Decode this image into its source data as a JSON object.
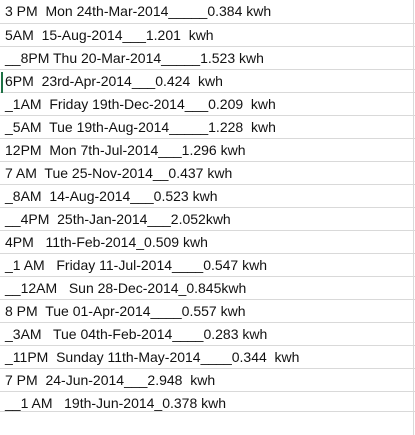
{
  "sheet": {
    "rows": [
      {
        "text": "3 PM  Mon 24th-Mar-2014_____0.384 kwh"
      },
      {
        "text": "5AM  15-Aug-2014___1.201  kwh"
      },
      {
        "text": "__8PM Thu 20-Mar-2014_____1.523 kwh"
      },
      {
        "text": "6PM  23rd-Apr-2014___0.424  kwh"
      },
      {
        "text": "_1AM  Friday 19th-Dec-2014___0.209  kwh"
      },
      {
        "text": "_5AM  Tue 19th-Aug-2014_____1.228  kwh"
      },
      {
        "text": "12PM  Mon 7th-Jul-2014___1.296 kwh"
      },
      {
        "text": "7 AM  Tue 25-Nov-2014__0.437 kwh"
      },
      {
        "text": "_8AM  14-Aug-2014___0.523 kwh"
      },
      {
        "text": "__4PM  25th-Jan-2014___2.052kwh"
      },
      {
        "text": "4PM   11th-Feb-2014_0.509 kwh"
      },
      {
        "text": "_1 AM   Friday 11-Jul-2014____0.547 kwh"
      },
      {
        "text": "__12AM   Sun 28-Dec-2014_0.845kwh"
      },
      {
        "text": "8 PM  Tue 01-Apr-2014____0.557 kwh"
      },
      {
        "text": "_3AM   Tue 04th-Feb-2014____0.283 kwh"
      },
      {
        "text": "_11PM  Sunday 11th-May-2014____0.344  kwh"
      },
      {
        "text": "7 PM  24-Jun-2014___2.948  kwh"
      },
      {
        "text": "__1 AM   19th-Jun-2014_0.378 kwh"
      }
    ]
  },
  "colors": {
    "gridline": "#d9d9d9",
    "text": "#111111",
    "selection_accent": "#1e7145"
  }
}
